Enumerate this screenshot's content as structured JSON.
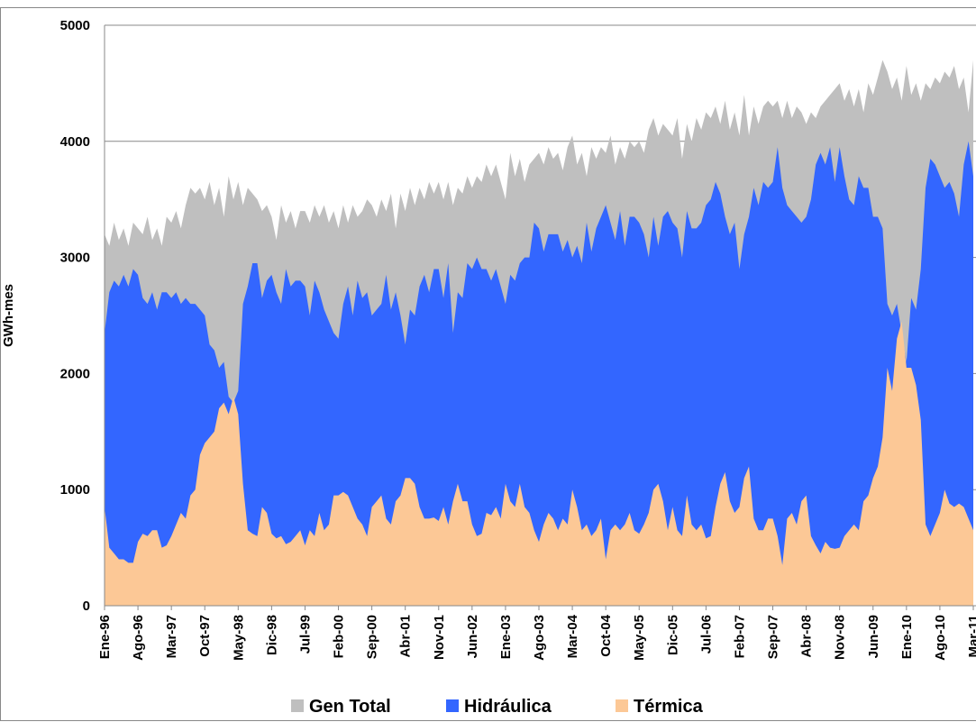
{
  "chart_data": {
    "type": "area",
    "y_label": "GWh-mes",
    "categories": [
      "Ene-96",
      null,
      null,
      null,
      null,
      null,
      null,
      "Ago-96",
      null,
      null,
      null,
      null,
      null,
      null,
      "Mar-97",
      null,
      null,
      null,
      null,
      null,
      null,
      "Oct-97",
      null,
      null,
      null,
      null,
      null,
      null,
      "May-98",
      null,
      null,
      null,
      null,
      null,
      null,
      "Dic-98",
      null,
      null,
      null,
      null,
      null,
      null,
      "Jul-99",
      null,
      null,
      null,
      null,
      null,
      null,
      "Feb-00",
      null,
      null,
      null,
      null,
      null,
      null,
      "Sep-00",
      null,
      null,
      null,
      null,
      null,
      null,
      "Abr-01",
      null,
      null,
      null,
      null,
      null,
      null,
      "Nov-01",
      null,
      null,
      null,
      null,
      null,
      null,
      "Jun-02",
      null,
      null,
      null,
      null,
      null,
      null,
      "Ene-03",
      null,
      null,
      null,
      null,
      null,
      null,
      "Ago-03",
      null,
      null,
      null,
      null,
      null,
      null,
      "Mar-04",
      null,
      null,
      null,
      null,
      null,
      null,
      "Oct-04",
      null,
      null,
      null,
      null,
      null,
      null,
      "May-05",
      null,
      null,
      null,
      null,
      null,
      null,
      "Dic-05",
      null,
      null,
      null,
      null,
      null,
      null,
      "Jul-06",
      null,
      null,
      null,
      null,
      null,
      null,
      "Feb-07",
      null,
      null,
      null,
      null,
      null,
      null,
      "Sep-07",
      null,
      null,
      null,
      null,
      null,
      null,
      "Abr-08",
      null,
      null,
      null,
      null,
      null,
      null,
      "Nov-08",
      null,
      null,
      null,
      null,
      null,
      null,
      "Jun-09",
      null,
      null,
      null,
      null,
      null,
      null,
      "Ene-10",
      null,
      null,
      null,
      null,
      null,
      null,
      "Ago-10",
      null,
      null,
      null,
      null,
      null,
      null,
      "Mar-11"
    ],
    "series": [
      {
        "name": "Gen Total",
        "color": "#bfbfbf",
        "values": [
          3200,
          3100,
          3300,
          3150,
          3250,
          3100,
          3300,
          3250,
          3200,
          3350,
          3150,
          3250,
          3100,
          3350,
          3300,
          3400,
          3250,
          3450,
          3600,
          3550,
          3600,
          3500,
          3650,
          3450,
          3600,
          3350,
          3700,
          3500,
          3650,
          3450,
          3600,
          3550,
          3500,
          3400,
          3450,
          3350,
          3150,
          3450,
          3300,
          3400,
          3250,
          3400,
          3400,
          3300,
          3450,
          3350,
          3450,
          3300,
          3400,
          3250,
          3450,
          3300,
          3450,
          3350,
          3400,
          3500,
          3450,
          3350,
          3500,
          3400,
          3550,
          3250,
          3550,
          3400,
          3600,
          3450,
          3600,
          3500,
          3650,
          3550,
          3650,
          3500,
          3650,
          3450,
          3600,
          3550,
          3700,
          3600,
          3700,
          3650,
          3800,
          3700,
          3800,
          3650,
          3500,
          3900,
          3700,
          3850,
          3650,
          3800,
          3850,
          3900,
          3800,
          3950,
          3850,
          3900,
          3750,
          3950,
          4050,
          3800,
          3900,
          3700,
          3950,
          3850,
          3950,
          3900,
          4050,
          3800,
          3950,
          3850,
          4000,
          3950,
          4000,
          3900,
          4100,
          4200,
          4050,
          4150,
          4100,
          4050,
          4200,
          3850,
          4150,
          4000,
          4200,
          4100,
          4250,
          4200,
          4300,
          4150,
          4350,
          4100,
          4250,
          4050,
          4400,
          4050,
          4300,
          4150,
          4300,
          4350,
          4300,
          4350,
          4200,
          4350,
          4200,
          4300,
          4250,
          4150,
          4250,
          4200,
          4300,
          4350,
          4400,
          4450,
          4500,
          4350,
          4450,
          4300,
          4450,
          4250,
          4500,
          4400,
          4550,
          4700,
          4600,
          4450,
          4550,
          4350,
          4650,
          4400,
          4500,
          4350,
          4500,
          4450,
          4550,
          4500,
          4600,
          4550,
          4650,
          4450,
          4550,
          4250,
          4700
        ]
      },
      {
        "name": "Hidráulica",
        "color": "#3366ff",
        "values": [
          2350,
          2700,
          2800,
          2750,
          2850,
          2750,
          2900,
          2850,
          2650,
          2600,
          2700,
          2550,
          2700,
          2700,
          2650,
          2700,
          2600,
          2650,
          2600,
          2600,
          2550,
          2500,
          2250,
          2200,
          2050,
          2100,
          1800,
          1750,
          1850,
          2600,
          2750,
          2950,
          2950,
          2650,
          2800,
          2850,
          2700,
          2600,
          2900,
          2750,
          2800,
          2800,
          2750,
          2500,
          2800,
          2700,
          2550,
          2450,
          2350,
          2300,
          2600,
          2750,
          2500,
          2800,
          2650,
          2700,
          2500,
          2550,
          2600,
          2850,
          2550,
          2700,
          2500,
          2250,
          2550,
          2500,
          2750,
          2850,
          2700,
          2900,
          2900,
          2650,
          2950,
          2350,
          2700,
          2650,
          2950,
          2900,
          3000,
          2900,
          2900,
          2800,
          2900,
          2750,
          2600,
          2850,
          2800,
          2950,
          3000,
          3000,
          3300,
          3250,
          3050,
          3200,
          3200,
          3200,
          3050,
          3150,
          3000,
          3100,
          2950,
          3300,
          3050,
          3250,
          3350,
          3450,
          3300,
          3150,
          3400,
          3100,
          3350,
          3350,
          3300,
          3200,
          3000,
          3350,
          3100,
          3350,
          3400,
          3300,
          3250,
          3000,
          3400,
          3250,
          3250,
          3300,
          3450,
          3500,
          3650,
          3550,
          3350,
          3200,
          3300,
          2900,
          3200,
          3350,
          3600,
          3450,
          3650,
          3600,
          3650,
          3950,
          3600,
          3450,
          3400,
          3350,
          3300,
          3350,
          3500,
          3800,
          3900,
          3800,
          3950,
          3650,
          3950,
          3700,
          3500,
          3450,
          3700,
          3600,
          3600,
          3350,
          3350,
          3250,
          2600,
          2500,
          2600,
          2350,
          2100,
          2650,
          2550,
          2900,
          3600,
          3850,
          3800,
          3700,
          3600,
          3650,
          3550,
          3350,
          3800,
          4000,
          3700
        ]
      },
      {
        "name": "Térmica",
        "color": "#fcc896",
        "values": [
          850,
          500,
          450,
          400,
          400,
          370,
          370,
          550,
          620,
          600,
          650,
          650,
          500,
          520,
          600,
          700,
          800,
          750,
          950,
          1000,
          1300,
          1400,
          1450,
          1500,
          1700,
          1750,
          1650,
          1800,
          1650,
          1050,
          650,
          620,
          600,
          850,
          800,
          620,
          580,
          600,
          530,
          550,
          600,
          650,
          520,
          650,
          600,
          800,
          650,
          700,
          950,
          950,
          980,
          950,
          850,
          750,
          700,
          600,
          850,
          900,
          950,
          750,
          700,
          900,
          950,
          1100,
          1100,
          1050,
          850,
          750,
          750,
          760,
          730,
          850,
          700,
          900,
          1050,
          900,
          900,
          700,
          600,
          620,
          800,
          780,
          850,
          750,
          1050,
          900,
          850,
          1050,
          850,
          800,
          650,
          550,
          700,
          800,
          750,
          650,
          750,
          700,
          1000,
          850,
          650,
          700,
          600,
          650,
          750,
          400,
          650,
          700,
          650,
          700,
          800,
          650,
          620,
          700,
          800,
          1000,
          1050,
          900,
          650,
          850,
          650,
          600,
          950,
          700,
          650,
          700,
          580,
          600,
          850,
          1050,
          1150,
          900,
          800,
          850,
          1100,
          1200,
          750,
          650,
          650,
          750,
          750,
          600,
          350,
          750,
          800,
          700,
          900,
          950,
          600,
          520,
          450,
          550,
          500,
          490,
          500,
          600,
          650,
          700,
          650,
          900,
          950,
          1100,
          1200,
          1450,
          2050,
          1850,
          2300,
          2450,
          2050,
          2050,
          1900,
          1600,
          700,
          600,
          700,
          800,
          1000,
          880,
          850,
          880,
          850,
          750,
          650
        ]
      }
    ],
    "ylim": [
      0,
      5000
    ],
    "yticks": [
      0,
      1000,
      2000,
      3000,
      4000,
      5000
    ],
    "grid": true,
    "legend": "bottom"
  }
}
